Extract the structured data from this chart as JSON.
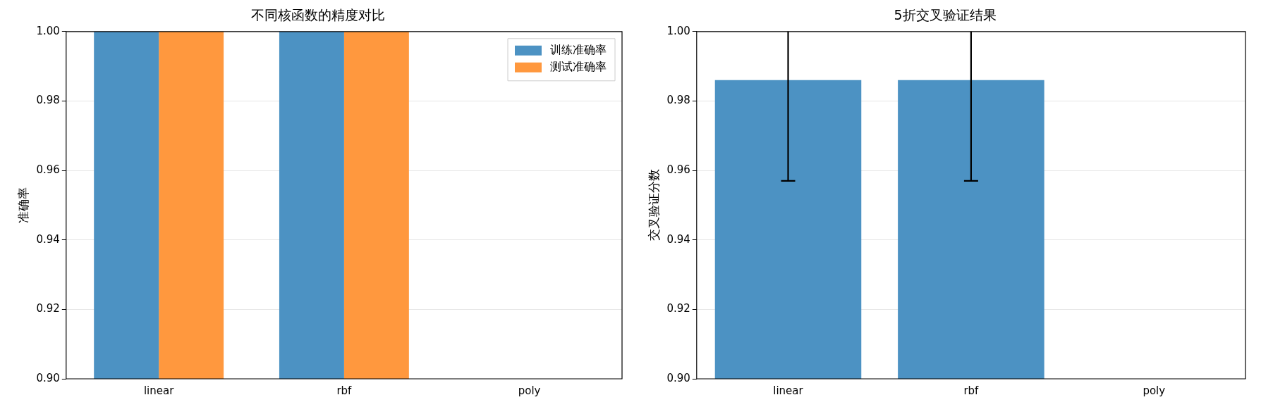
{
  "chart_data": [
    {
      "type": "bar",
      "title": "不同核函数的精度对比",
      "ylabel": "准确率",
      "categories": [
        "linear",
        "rbf",
        "poly"
      ],
      "series": [
        {
          "name": "训练准确率",
          "color": "#4c92c3",
          "values": [
            1.0,
            1.0,
            null
          ]
        },
        {
          "name": "测试准确率",
          "color": "#ff983e",
          "values": [
            1.0,
            1.0,
            null
          ]
        }
      ],
      "ylim": [
        0.9,
        1.0
      ],
      "yticks": [
        {
          "value": 0.9,
          "label": "0.90"
        },
        {
          "value": 0.92,
          "label": "0.92"
        },
        {
          "value": 0.94,
          "label": "0.94"
        },
        {
          "value": 0.96,
          "label": "0.96"
        },
        {
          "value": 0.98,
          "label": "0.98"
        },
        {
          "value": 1.0,
          "label": "1.00"
        }
      ],
      "grid": "y",
      "legend": "top right"
    },
    {
      "type": "bar",
      "title": "5折交叉验证结果",
      "ylabel": "交叉验证分数",
      "categories": [
        "linear",
        "rbf",
        "poly"
      ],
      "series": [
        {
          "color": "#4c92c3",
          "values": [
            0.986,
            0.986,
            null
          ],
          "errors": [
            [
              0.957,
              1.0
            ],
            [
              0.957,
              1.0
            ],
            null
          ]
        }
      ],
      "ylim": [
        0.9,
        1.0
      ],
      "yticks": [
        {
          "value": 0.9,
          "label": "0.90"
        },
        {
          "value": 0.92,
          "label": "0.92"
        },
        {
          "value": 0.94,
          "label": "0.94"
        },
        {
          "value": 0.96,
          "label": "0.96"
        },
        {
          "value": 0.98,
          "label": "0.98"
        },
        {
          "value": 1.0,
          "label": "1.00"
        }
      ],
      "grid": "y"
    }
  ]
}
